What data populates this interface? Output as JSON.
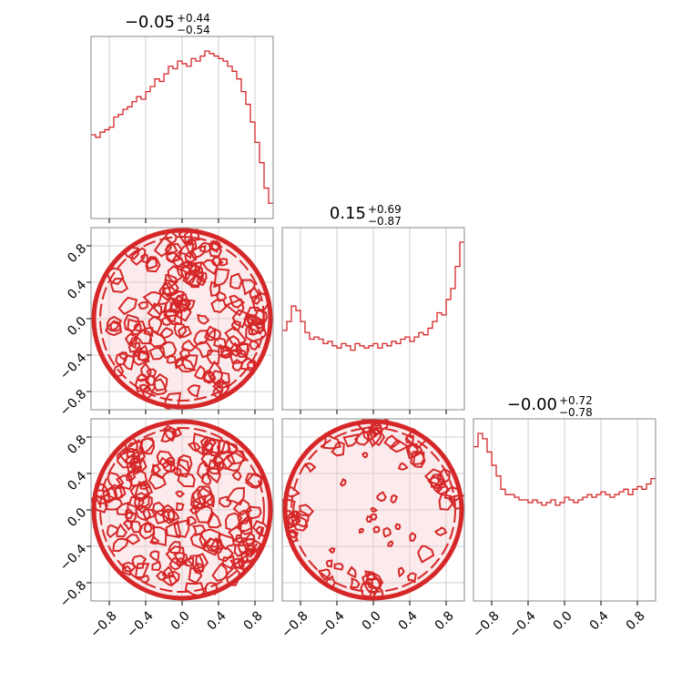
{
  "chart_data": {
    "type": "corner",
    "color": "#d62728",
    "grid": true,
    "range": [
      -1,
      1
    ],
    "tick_labels": [
      "−0.8",
      "−0.4",
      "0.0",
      "0.4",
      "0.8"
    ],
    "tick_values": [
      -0.8,
      -0.4,
      0.0,
      0.4,
      0.8
    ],
    "diagonal_titles": [
      {
        "main": "−0.05",
        "sup": "+0.44",
        "sub": "−0.54"
      },
      {
        "main": "0.15",
        "sup": "+0.69",
        "sub": "−0.87"
      },
      {
        "main": "−0.00",
        "sup": "+0.72",
        "sub": "−0.78"
      }
    ],
    "histograms": [
      {
        "type": "histogram",
        "bin_edges_range": [
          -1,
          1
        ],
        "counts": [
          0.33,
          0.32,
          0.34,
          0.35,
          0.36,
          0.4,
          0.41,
          0.43,
          0.44,
          0.46,
          0.48,
          0.47,
          0.5,
          0.52,
          0.55,
          0.54,
          0.57,
          0.6,
          0.59,
          0.62,
          0.61,
          0.6,
          0.63,
          0.62,
          0.64,
          0.66,
          0.65,
          0.64,
          0.63,
          0.62,
          0.6,
          0.58,
          0.55,
          0.5,
          0.45,
          0.38,
          0.3,
          0.22,
          0.12,
          0.06
        ]
      },
      {
        "type": "histogram",
        "bin_edges_range": [
          -1,
          1
        ],
        "counts": [
          0.36,
          0.4,
          0.47,
          0.45,
          0.4,
          0.35,
          0.32,
          0.33,
          0.32,
          0.3,
          0.31,
          0.29,
          0.28,
          0.3,
          0.29,
          0.27,
          0.3,
          0.29,
          0.28,
          0.29,
          0.3,
          0.28,
          0.3,
          0.29,
          0.31,
          0.3,
          0.32,
          0.33,
          0.31,
          0.33,
          0.35,
          0.34,
          0.37,
          0.4,
          0.44,
          0.43,
          0.5,
          0.55,
          0.65,
          0.76
        ]
      },
      {
        "type": "histogram",
        "bin_edges_range": [
          -1,
          1
        ],
        "counts": [
          0.58,
          0.63,
          0.61,
          0.56,
          0.51,
          0.47,
          0.42,
          0.4,
          0.4,
          0.39,
          0.38,
          0.38,
          0.37,
          0.38,
          0.37,
          0.36,
          0.37,
          0.38,
          0.36,
          0.37,
          0.39,
          0.38,
          0.37,
          0.38,
          0.39,
          0.4,
          0.39,
          0.4,
          0.41,
          0.4,
          0.39,
          0.4,
          0.41,
          0.42,
          0.4,
          0.42,
          0.43,
          0.42,
          0.44,
          0.46
        ]
      }
    ],
    "pair_plots": [
      {
        "type": "2d-density-contour",
        "row": 2,
        "col": 1,
        "x_param": 1,
        "y_param": 2,
        "support": "disk of radius 1 (dense contours throughout)"
      },
      {
        "type": "2d-density-contour",
        "row": 3,
        "col": 1,
        "x_param": 1,
        "y_param": 3,
        "support": "disk of radius 1 (dense contours throughout)"
      },
      {
        "type": "2d-density-contour",
        "row": 3,
        "col": 2,
        "x_param": 2,
        "y_param": 3,
        "support": "disk of radius 1, contours concentrated at edge ring"
      }
    ]
  }
}
